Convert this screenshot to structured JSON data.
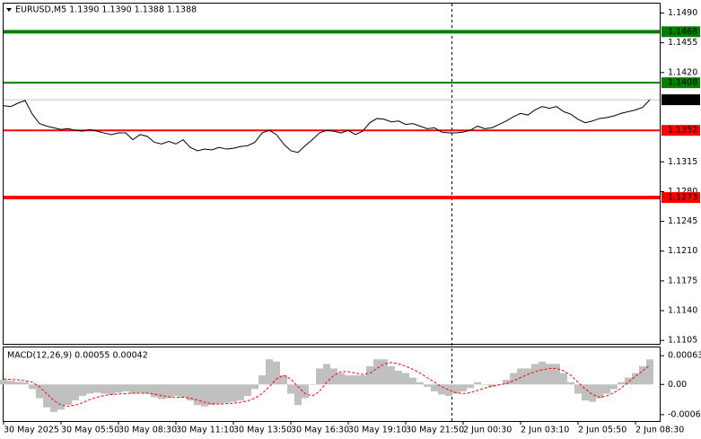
{
  "chart_data": [
    {
      "type": "line",
      "title": "EURUSD,M5  1.1390 1.1390 1.1388 1.1388",
      "categories": [
        "30 May 2025",
        null,
        null,
        null,
        null,
        null,
        null,
        null,
        "30 May 05:50",
        null,
        null,
        null,
        null,
        null,
        null,
        null,
        "30 May 08:30",
        null,
        null,
        null,
        null,
        null,
        null,
        null,
        "30 May 11:10",
        null,
        null,
        null,
        null,
        null,
        null,
        null,
        "30 May 13:50",
        null,
        null,
        null,
        null,
        null,
        null,
        null,
        "30 May 16:30",
        null,
        null,
        null,
        null,
        null,
        null,
        null,
        "30 May 19:10",
        null,
        null,
        null,
        null,
        null,
        null,
        null,
        "30 May 21:50",
        null,
        null,
        null,
        null,
        null,
        null,
        null,
        "2 Jun 00:30",
        null,
        null,
        null,
        null,
        null,
        null,
        null,
        "2 Jun 03:10",
        null,
        null,
        null,
        null,
        null,
        null,
        null,
        "2 Jun 05:50",
        null,
        null,
        null,
        null,
        null,
        null,
        null,
        "2 Jun 08:30",
        null,
        null
      ],
      "values": [
        1.1381,
        1.138,
        1.1384,
        1.1387,
        1.1371,
        1.136,
        1.1357,
        1.1355,
        1.1353,
        1.1354,
        1.1352,
        1.1351,
        1.1353,
        1.1351,
        1.1349,
        1.1347,
        1.1349,
        1.1349,
        1.1341,
        1.1347,
        1.1345,
        1.1338,
        1.1336,
        1.1339,
        1.1336,
        1.1341,
        1.1332,
        1.1328,
        1.133,
        1.1329,
        1.1332,
        1.133,
        1.1331,
        1.1333,
        1.1334,
        1.1338,
        1.1349,
        1.1352,
        1.1347,
        1.1336,
        1.1328,
        1.1326,
        1.1334,
        1.1341,
        1.1349,
        1.1352,
        1.1351,
        1.1349,
        1.1352,
        1.1347,
        1.1351,
        1.1361,
        1.1366,
        1.1365,
        1.1362,
        1.1363,
        1.1359,
        1.136,
        1.1357,
        1.1354,
        1.1355,
        1.135,
        1.1349,
        1.1349,
        1.135,
        1.1352,
        1.1357,
        1.1354,
        1.1355,
        1.1359,
        1.1363,
        1.1368,
        1.1372,
        1.137,
        1.1376,
        1.138,
        1.1378,
        1.138,
        1.1374,
        1.1371,
        1.1365,
        1.1361,
        1.1363,
        1.1366,
        1.1367,
        1.1369,
        1.1372,
        1.1374,
        1.1376,
        1.1379,
        1.1388
      ],
      "color": "#000000",
      "ylim": [
        1.1101,
        1.15
      ],
      "yticks": [
        {
          "value": 1.149,
          "label": "1.1490"
        },
        1.1455,
        {
          "value": 1.142,
          "label": "1.1420"
        },
        1.1315,
        {
          "value": 1.128,
          "label": "1.1280"
        },
        1.1245,
        {
          "value": 1.121,
          "label": "1.1210"
        },
        1.1175,
        {
          "value": 1.114,
          "label": "1.1140"
        },
        1.1105
      ],
      "levels": [
        {
          "value": 1.1468,
          "color": "#008000",
          "weight": "thick"
        },
        {
          "value": 1.1408,
          "color": "#008000",
          "weight": "thin"
        },
        {
          "value": 1.1352,
          "color": "#ff0000",
          "weight": "thin"
        },
        {
          "value": 1.1273,
          "color": "#ff0000",
          "weight": "thick"
        }
      ],
      "last_price": 1.1388
    },
    {
      "type": "macd",
      "title": "MACD(12,26,9) 0.00055 0.00042",
      "series": [
        {
          "type": "bar",
          "color": "#c0c0c0",
          "values": [
            0.0001,
            8e-05,
            6e-05,
            5e-05,
            -0.0001,
            -0.0003,
            -0.0005,
            -0.0006,
            -0.00055,
            -0.00045,
            -0.00035,
            -0.00025,
            -0.0002,
            -0.00018,
            -0.0002,
            -0.00022,
            -0.00018,
            -0.00015,
            -0.0002,
            -0.00018,
            -0.0002,
            -0.00028,
            -0.00032,
            -0.0003,
            -0.00025,
            -0.00028,
            -0.00035,
            -0.00045,
            -0.00048,
            -0.00045,
            -0.00042,
            -0.0004,
            -0.00038,
            -0.00035,
            -0.00025,
            -0.0001,
            0.0002,
            0.00055,
            0.0005,
            0.0002,
            -0.0002,
            -0.00045,
            -0.0003,
            0,
            0.00035,
            0.00045,
            0.00035,
            0.00025,
            0.0002,
            0.0002,
            0.0002,
            0.0004,
            0.00055,
            0.00055,
            0.0004,
            0.0003,
            0.00025,
            0.00015,
            5e-05,
            -5e-05,
            -0.00015,
            -0.00022,
            -0.00025,
            -0.0002,
            -0.00015,
            -8e-05,
            5e-05,
            0,
            -5e-05,
            0,
            0.0001,
            0.00025,
            0.00035,
            0.00035,
            0.00045,
            0.0005,
            0.00045,
            0.00045,
            0.00025,
            5e-05,
            -0.0002,
            -0.00035,
            -0.00038,
            -0.0003,
            -0.0002,
            -0.0001,
            5e-05,
            0.00015,
            0.00025,
            0.0004,
            0.00055
          ]
        },
        {
          "type": "line",
          "color": "#ff0000",
          "dashed": true,
          "values": [
            0.00012,
            0.00011,
            0.0001,
            8e-05,
            5e-05,
            -5e-05,
            -0.0002,
            -0.00035,
            -0.00045,
            -0.00048,
            -0.00045,
            -0.0004,
            -0.00033,
            -0.00028,
            -0.00024,
            -0.00022,
            -0.00021,
            -0.0002,
            -0.00019,
            -0.00019,
            -0.00019,
            -0.00021,
            -0.00024,
            -0.00027,
            -0.00028,
            -0.00028,
            -0.0003,
            -0.00034,
            -0.00039,
            -0.00042,
            -0.00043,
            -0.00042,
            -0.00041,
            -0.00039,
            -0.00036,
            -0.0003,
            -0.0002,
            -5e-05,
            0.00012,
            0.0002,
            0.00012,
            -5e-05,
            -0.0002,
            -0.00025,
            -0.00015,
            5e-05,
            0.0002,
            0.00028,
            0.00028,
            0.00025,
            0.00022,
            0.00025,
            0.00035,
            0.00045,
            0.00048,
            0.00045,
            0.0004,
            0.00033,
            0.00025,
            0.00015,
            5e-05,
            -5e-05,
            -0.00012,
            -0.00018,
            -0.0002,
            -0.00018,
            -0.00013,
            -8e-05,
            -4e-05,
            -1e-05,
            2e-05,
            8e-05,
            0.00015,
            0.00022,
            0.00028,
            0.00032,
            0.00035,
            0.00035,
            0.0003,
            0.0002,
            5e-05,
            -0.0001,
            -0.00022,
            -0.00028,
            -0.00025,
            -0.00018,
            -8e-05,
            5e-05,
            0.00018,
            0.0003,
            0.00042
          ]
        }
      ],
      "ylim": [
        -0.00078,
        0.00081
      ],
      "yticks": [
        0.00063,
        {
          "value": 0,
          "label": "0.00"
        },
        -0.00066
      ]
    }
  ]
}
